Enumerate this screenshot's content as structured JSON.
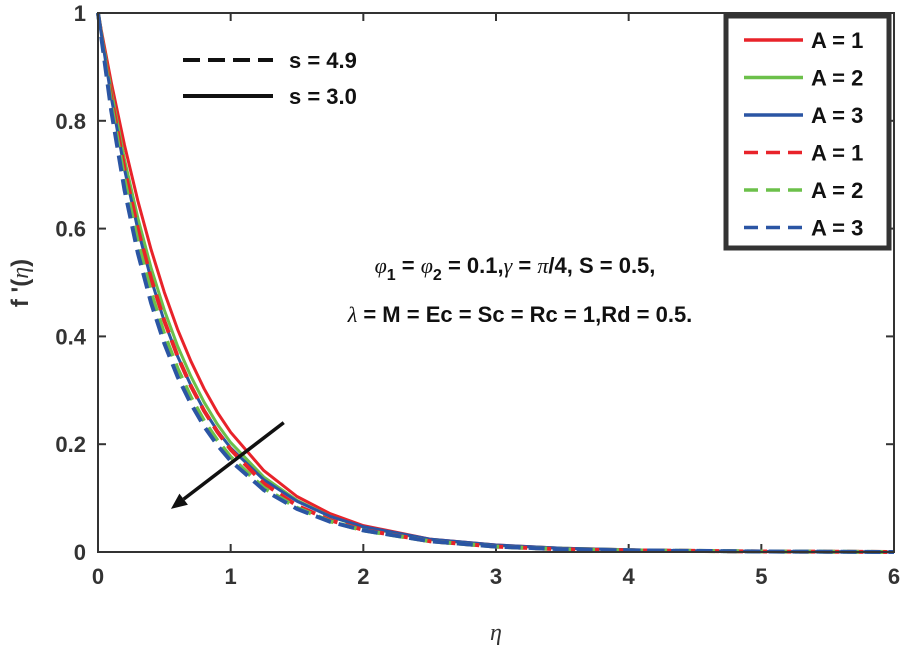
{
  "chart_data": {
    "type": "line",
    "xlabel": "η",
    "ylabel_main": "f '(",
    "ylabel_var": "η",
    "ylabel_close": ")",
    "xlim": [
      0,
      6
    ],
    "ylim": [
      0,
      1
    ],
    "x_ticks": [
      0,
      1,
      2,
      3,
      4,
      5,
      6
    ],
    "y_ticks": [
      0,
      0.2,
      0.4,
      0.6,
      0.8,
      1
    ],
    "x_tick_labels": [
      "0",
      "1",
      "2",
      "3",
      "4",
      "5",
      "6"
    ],
    "y_tick_labels": [
      "0",
      "0.2",
      "0.4",
      "0.6",
      "0.8",
      "1"
    ],
    "series": [
      {
        "name": "A = 1",
        "color": "#e8232a",
        "style": "solid",
        "x": [
          0,
          0.1,
          0.2,
          0.3,
          0.4,
          0.5,
          0.6,
          0.7,
          0.8,
          0.9,
          1,
          1.25,
          1.5,
          1.75,
          2,
          2.5,
          3,
          3.5,
          4,
          4.5,
          5,
          5.5,
          6
        ],
        "y": [
          1,
          0.871,
          0.755,
          0.652,
          0.561,
          0.482,
          0.413,
          0.354,
          0.303,
          0.259,
          0.222,
          0.151,
          0.103,
          0.071,
          0.049,
          0.024,
          0.013,
          0.007,
          0.004,
          0.002,
          0.001,
          0.0005,
          0
        ]
      },
      {
        "name": "A = 2",
        "color": "#6cc04a",
        "style": "solid",
        "x": [
          0,
          0.1,
          0.2,
          0.3,
          0.4,
          0.5,
          0.6,
          0.7,
          0.8,
          0.9,
          1,
          1.25,
          1.5,
          1.75,
          2,
          2.5,
          3,
          3.5,
          4,
          4.5,
          5,
          5.5,
          6
        ],
        "y": [
          1,
          0.855,
          0.728,
          0.62,
          0.527,
          0.449,
          0.382,
          0.326,
          0.278,
          0.237,
          0.203,
          0.139,
          0.096,
          0.066,
          0.046,
          0.023,
          0.012,
          0.007,
          0.004,
          0.002,
          0.001,
          0.0005,
          0
        ]
      },
      {
        "name": "A = 3",
        "color": "#2b55a4",
        "style": "solid",
        "x": [
          0,
          0.1,
          0.2,
          0.3,
          0.4,
          0.5,
          0.6,
          0.7,
          0.8,
          0.9,
          1,
          1.25,
          1.5,
          1.75,
          2,
          2.5,
          3,
          3.5,
          4,
          4.5,
          5,
          5.5,
          6
        ],
        "y": [
          1,
          0.843,
          0.71,
          0.599,
          0.506,
          0.428,
          0.363,
          0.309,
          0.263,
          0.225,
          0.193,
          0.134,
          0.094,
          0.066,
          0.047,
          0.024,
          0.013,
          0.007,
          0.004,
          0.002,
          0.001,
          0.0005,
          0
        ]
      },
      {
        "name": "A = 1",
        "color": "#e8232a",
        "style": "dashed",
        "x": [
          0,
          0.1,
          0.2,
          0.3,
          0.4,
          0.5,
          0.6,
          0.7,
          0.8,
          0.9,
          1,
          1.25,
          1.5,
          1.75,
          2,
          2.5,
          3,
          3.5,
          4,
          4.5,
          5,
          5.5,
          6
        ],
        "y": [
          1,
          0.843,
          0.711,
          0.6,
          0.507,
          0.429,
          0.363,
          0.308,
          0.262,
          0.223,
          0.19,
          0.127,
          0.086,
          0.059,
          0.041,
          0.02,
          0.01,
          0.005,
          0.003,
          0.002,
          0.001,
          0.0005,
          0
        ]
      },
      {
        "name": "A = 2",
        "color": "#6cc04a",
        "style": "dashed",
        "x": [
          0,
          0.1,
          0.2,
          0.3,
          0.4,
          0.5,
          0.6,
          0.7,
          0.8,
          0.9,
          1,
          1.25,
          1.5,
          1.75,
          2,
          2.5,
          3,
          3.5,
          4,
          4.5,
          5,
          5.5,
          6
        ],
        "y": [
          1,
          0.83,
          0.69,
          0.575,
          0.481,
          0.404,
          0.34,
          0.287,
          0.243,
          0.207,
          0.176,
          0.119,
          0.082,
          0.057,
          0.04,
          0.02,
          0.01,
          0.005,
          0.003,
          0.002,
          0.001,
          0.0005,
          0
        ]
      },
      {
        "name": "A = 3",
        "color": "#2b55a4",
        "style": "dashed",
        "x": [
          0,
          0.1,
          0.2,
          0.3,
          0.4,
          0.5,
          0.6,
          0.7,
          0.8,
          0.9,
          1,
          1.25,
          1.5,
          1.75,
          2,
          2.5,
          3,
          3.5,
          4,
          4.5,
          5,
          5.5,
          6
        ],
        "y": [
          1,
          0.818,
          0.672,
          0.555,
          0.462,
          0.387,
          0.325,
          0.275,
          0.233,
          0.198,
          0.169,
          0.115,
          0.08,
          0.056,
          0.04,
          0.02,
          0.01,
          0.005,
          0.003,
          0.002,
          0.001,
          0.0005,
          0
        ]
      }
    ],
    "style_legend": [
      {
        "label": "s = 4.9",
        "style": "dashed"
      },
      {
        "label": "s = 3.0",
        "style": "solid"
      }
    ],
    "annotation": {
      "line1": [
        "φ",
        "1",
        " = ",
        "φ",
        "2",
        " = 0.1,",
        "γ",
        " = ",
        "π",
        "/4, S = 0.5,"
      ],
      "line2": [
        "λ",
        " = M = Ec = Sc = Rc = 1,Rd = 0.5."
      ],
      "arrow": {
        "from": [
          1.4,
          0.24
        ],
        "to": [
          0.55,
          0.08
        ]
      }
    },
    "legend_position": "top-right"
  }
}
